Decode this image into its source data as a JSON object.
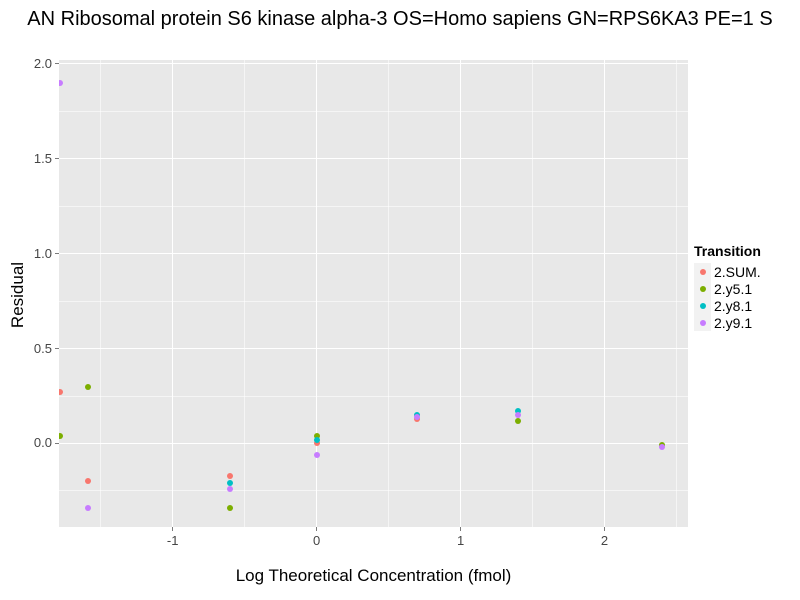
{
  "title": "AN Ribosomal protein S6 kinase alpha-3 OS=Homo sapiens GN=RPS6KA3 PE=1 S",
  "chart_data": {
    "type": "scatter",
    "title": "AN Ribosomal protein S6 kinase alpha-3 OS=Homo sapiens GN=RPS6KA3 PE=1 S",
    "xlabel": "Log Theoretical Concentration (fmol)",
    "ylabel": "Residual",
    "xlim": [
      -1.79,
      2.58
    ],
    "ylim": [
      -0.44,
      2.02
    ],
    "x_ticks": [
      -1,
      0,
      1,
      2
    ],
    "x_tick_labels": [
      "-1",
      "0",
      "1",
      "2"
    ],
    "y_ticks": [
      0.0,
      0.5,
      1.0,
      1.5,
      2.0
    ],
    "y_tick_labels": [
      "0.0",
      "0.5",
      "1.0",
      "1.5",
      "2.0"
    ],
    "x_minor_ticks": [
      -1.5,
      -0.5,
      0.5,
      1.5,
      2.5
    ],
    "y_minor_ticks": [
      -0.25,
      0.25,
      0.75,
      1.25,
      1.75
    ],
    "grid": "on",
    "panel_background": "#e8e8e8",
    "legend_title": "Transition",
    "legend_position": "right",
    "series": [
      {
        "name": "2.SUM.",
        "color": "#F8766D",
        "points": [
          [
            -1.78,
            0.27
          ],
          [
            -1.59,
            -0.2
          ],
          [
            -0.6,
            -0.17
          ],
          [
            0.0,
            0.0
          ],
          [
            0.7,
            0.13
          ]
        ]
      },
      {
        "name": "2.y5.1",
        "color": "#7CAE00",
        "points": [
          [
            -1.78,
            0.04
          ],
          [
            -1.59,
            0.3
          ],
          [
            -0.6,
            -0.34
          ],
          [
            0.0,
            0.04
          ],
          [
            1.4,
            0.12
          ],
          [
            2.4,
            -0.01
          ]
        ]
      },
      {
        "name": "2.y8.1",
        "color": "#00BFC4",
        "points": [
          [
            -0.6,
            -0.21
          ],
          [
            0.0,
            0.02
          ],
          [
            0.7,
            0.15
          ],
          [
            1.4,
            0.17
          ]
        ]
      },
      {
        "name": "2.y9.1",
        "color": "#C77CFF",
        "points": [
          [
            -1.78,
            1.9
          ],
          [
            -1.59,
            -0.34
          ],
          [
            -0.6,
            -0.24
          ],
          [
            0.0,
            -0.06
          ],
          [
            0.7,
            0.14
          ],
          [
            1.4,
            0.15
          ],
          [
            2.4,
            -0.02
          ]
        ]
      }
    ]
  }
}
